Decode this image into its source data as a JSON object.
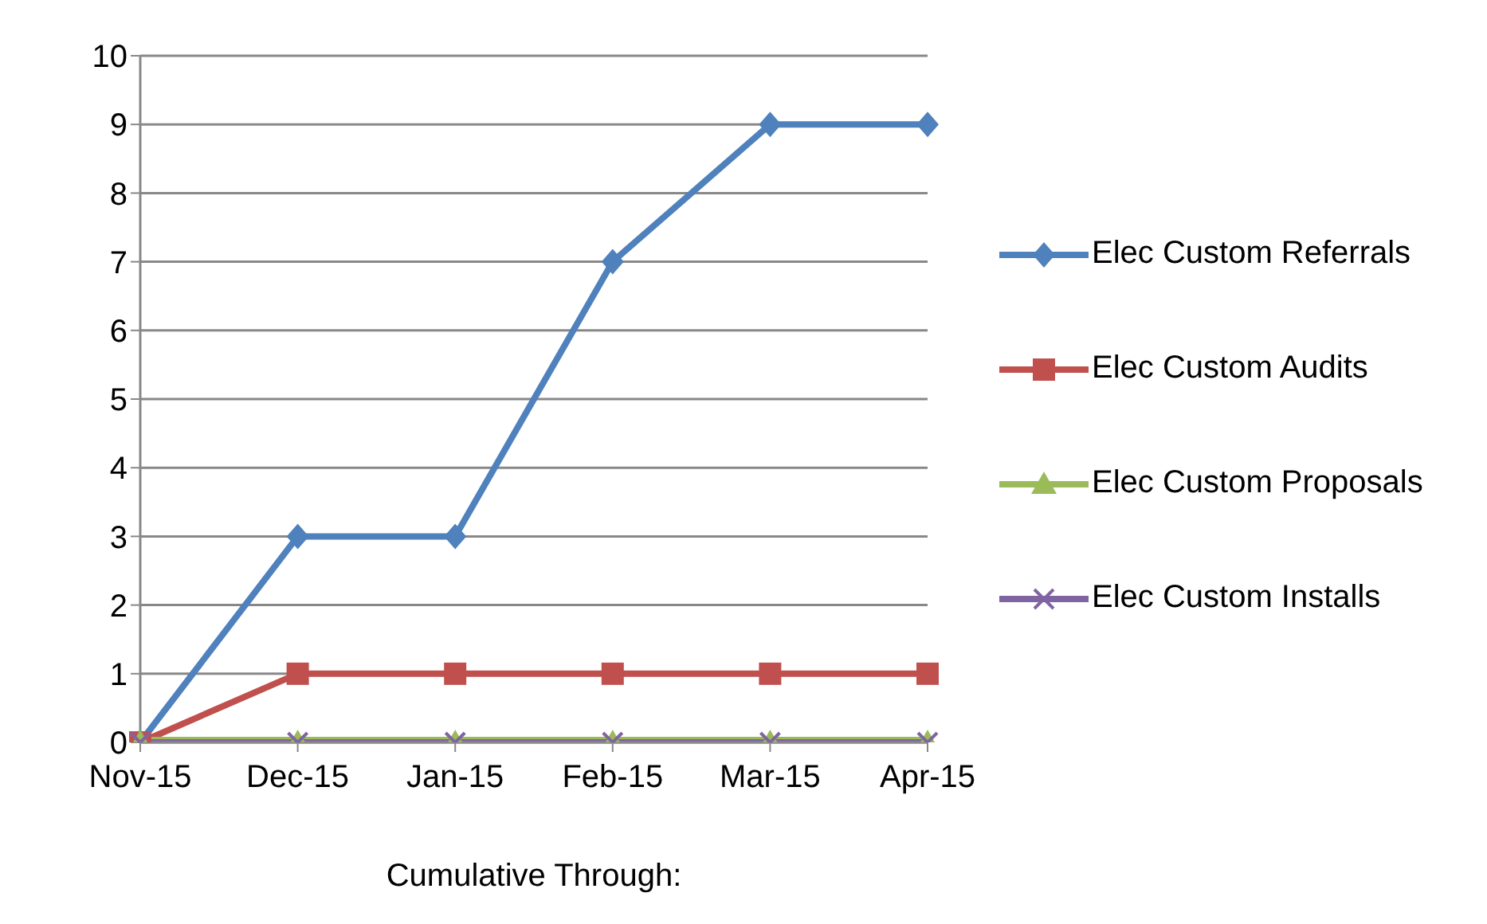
{
  "chart_data": {
    "type": "line",
    "xlabel": "Cumulative Through:",
    "categories": [
      "Nov-15",
      "Dec-15",
      "Jan-15",
      "Feb-15",
      "Mar-15",
      "Apr-15"
    ],
    "series": [
      {
        "name": "Elec Custom Referrals",
        "color": "#4f81bd",
        "marker": "diamond",
        "values": [
          0,
          3,
          3,
          7,
          9,
          9
        ]
      },
      {
        "name": "Elec Custom Audits",
        "color": "#c0504d",
        "marker": "square",
        "values": [
          0,
          1,
          1,
          1,
          1,
          1
        ]
      },
      {
        "name": "Elec Custom Proposals",
        "color": "#9bbb59",
        "marker": "triangle",
        "values": [
          0,
          0,
          0,
          0,
          0,
          0
        ]
      },
      {
        "name": "Elec Custom Installs",
        "color": "#8064a2",
        "marker": "cross",
        "values": [
          0,
          0,
          0,
          0,
          0,
          0
        ]
      }
    ],
    "ylim": [
      0,
      10
    ],
    "yticks": [
      0,
      1,
      2,
      3,
      4,
      5,
      6,
      7,
      8,
      9,
      10
    ],
    "grid": "y",
    "legend": "right",
    "line_style": "solid"
  }
}
